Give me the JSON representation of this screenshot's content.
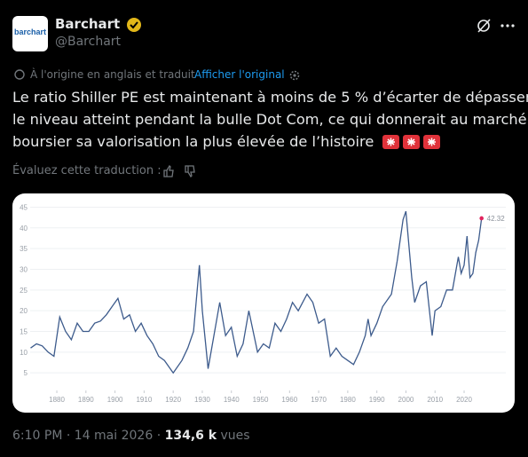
{
  "tweet": {
    "author": {
      "name": "Barchart",
      "handle": "@Barchart",
      "avatar_text": "barchart"
    },
    "translation": {
      "note": "À l'origine en anglais et traduit",
      "show_original": "Afficher l'original"
    },
    "text_lines": [
      "Le ratio Shiller PE est maintenant à moins de 5 % d’écarter de dépasser",
      "le niveau atteint pendant la bulle Dot Com, ce qui donnerait au marché",
      "boursier sa valorisation la plus élevée de l’histoire"
    ],
    "rate_prompt": "Évaluez cette traduction :",
    "meta": {
      "time": "6:10 PM",
      "separator": "·",
      "date": "14 mai 2026",
      "views": "134,6 k",
      "views_label": "vues"
    }
  },
  "chart_data": {
    "type": "line",
    "x": [
      1871,
      1873,
      1875,
      1877,
      1879,
      1881,
      1883,
      1885,
      1887,
      1889,
      1891,
      1893,
      1895,
      1897,
      1899,
      1901,
      1903,
      1905,
      1907,
      1909,
      1911,
      1913,
      1915,
      1917,
      1920,
      1921,
      1923,
      1925,
      1927,
      1929,
      1930,
      1932,
      1933,
      1936,
      1938,
      1940,
      1942,
      1944,
      1946,
      1949,
      1951,
      1953,
      1955,
      1957,
      1959,
      1961,
      1963,
      1966,
      1968,
      1970,
      1972,
      1974,
      1976,
      1978,
      1980,
      1982,
      1984,
      1986,
      1987,
      1988,
      1990,
      1992,
      1995,
      1997,
      1999,
      2000,
      2002,
      2003,
      2005,
      2007,
      2009,
      2010,
      2012,
      2014,
      2016,
      2018,
      2019,
      2020,
      2021,
      2022,
      2023,
      2024,
      2025,
      2026
    ],
    "series": [
      {
        "color": "#3d5b8c",
        "values": [
          11,
          12,
          11.5,
          10,
          9,
          18.5,
          15,
          13,
          17,
          15,
          15,
          17,
          17.5,
          19,
          21,
          23,
          18,
          19,
          15,
          17,
          14,
          12,
          9,
          8,
          5,
          6,
          8,
          11,
          15,
          31,
          20,
          6,
          10,
          22,
          14,
          16,
          9,
          12,
          20,
          10,
          12,
          11,
          17,
          15,
          18,
          22,
          20,
          24,
          22,
          17,
          18,
          9,
          11,
          9,
          8,
          7,
          10,
          14,
          18,
          14,
          17,
          21,
          24,
          32,
          42,
          44,
          28,
          22,
          26,
          27,
          14,
          20,
          21,
          25,
          25,
          33,
          29,
          31,
          38,
          28,
          29,
          34,
          37,
          42.32
        ]
      }
    ],
    "xlim": [
      1868,
      2030
    ],
    "ylim": [
      0,
      46
    ],
    "xticks": [
      1880,
      1890,
      1900,
      1910,
      1920,
      1930,
      1940,
      1950,
      1960,
      1970,
      1980,
      1990,
      2000,
      2010,
      2020
    ],
    "yticks": [
      5,
      10,
      15,
      20,
      25,
      30,
      35,
      40,
      45
    ],
    "grid": true
  }
}
